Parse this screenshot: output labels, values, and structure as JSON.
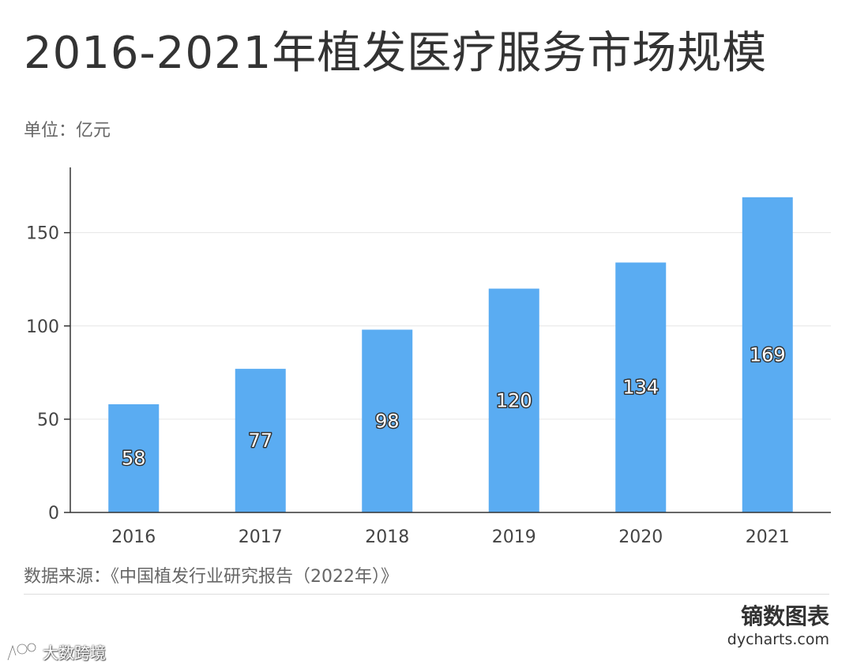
{
  "title": "2016-2021年植发医疗服务市场规模",
  "unit": "单位：亿元",
  "source": "数据来源：《中国植发行业研究报告（2022年）》",
  "brand": {
    "name": "镝数图表",
    "site": "dycharts.com"
  },
  "watermark": {
    "text": "大数跨境"
  },
  "colors": {
    "bar": "#5aacf2",
    "axis": "#333333",
    "grid": "#e6e6e6",
    "tick_label": "#444444"
  },
  "chart_data": {
    "type": "bar",
    "title": "2016-2021年植发医疗服务市场规模",
    "xlabel": "",
    "ylabel": "亿元",
    "categories": [
      "2016",
      "2017",
      "2018",
      "2019",
      "2020",
      "2021"
    ],
    "values": [
      58,
      77,
      98,
      120,
      134,
      169
    ],
    "ylim": [
      0,
      185
    ],
    "yticks": [
      0,
      50,
      100,
      150
    ],
    "grid": true,
    "legend": "none"
  }
}
